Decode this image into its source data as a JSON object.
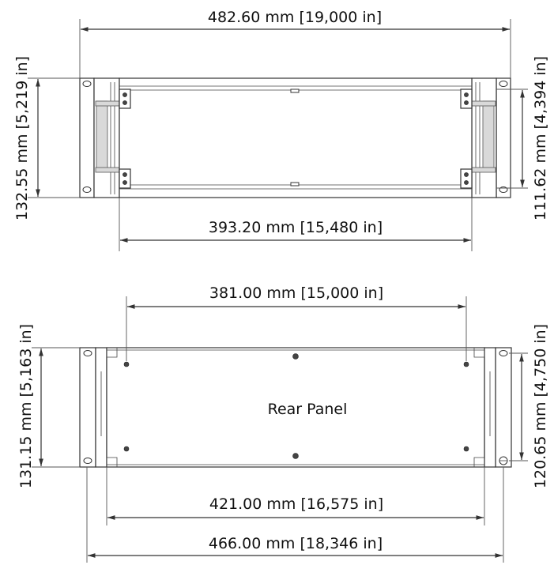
{
  "front_view": {
    "overall_width": "482.60 mm [19,000 in]",
    "overall_height": "132.55 mm [5,219 in]",
    "inner_height": "111.62 mm [4,394 in]",
    "inner_width": "393.20 mm [15,480 in]"
  },
  "rear_view": {
    "label": "Rear Panel",
    "hole_spacing": "381.00 mm [15,000 in]",
    "overall_height": "131.15 mm [5,163 in]",
    "inner_height": "120.65 mm [4,750 in]",
    "body_width": "421.00 mm [16,575 in]",
    "overall_width": "466.00 mm [18,346 in]"
  },
  "colors": {
    "line": "#333333",
    "text": "#111111",
    "shade": "#d9d9d9"
  }
}
